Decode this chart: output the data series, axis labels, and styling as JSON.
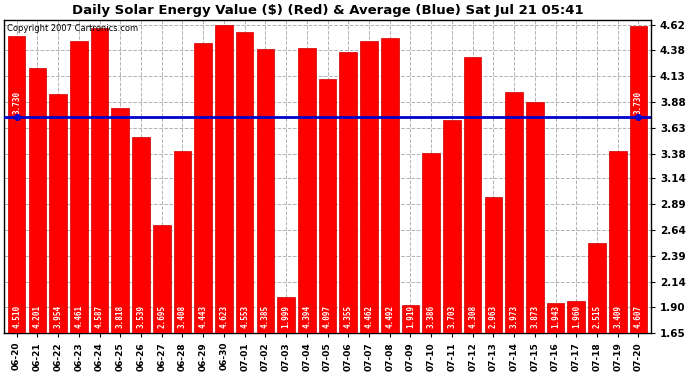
{
  "title": "Daily Solar Energy Value ($) (Red) & Average (Blue) Sat Jul 21 05:41",
  "copyright": "Copyright 2007 Cartronics.com",
  "average_value": 3.73,
  "bar_color": "#FF0000",
  "avg_line_color": "#0000CC",
  "background_color": "#FFFFFF",
  "plot_bg_color": "#FFFFFF",
  "grid_color": "#AAAAAA",
  "categories": [
    "06-20",
    "06-21",
    "06-22",
    "06-23",
    "06-24",
    "06-25",
    "06-26",
    "06-27",
    "06-28",
    "06-29",
    "06-30",
    "07-01",
    "07-02",
    "07-03",
    "07-04",
    "07-05",
    "07-06",
    "07-07",
    "07-08",
    "07-09",
    "07-10",
    "07-11",
    "07-12",
    "07-13",
    "07-14",
    "07-15",
    "07-16",
    "07-17",
    "07-18",
    "07-19",
    "07-20"
  ],
  "values": [
    4.51,
    4.201,
    3.954,
    4.461,
    4.587,
    3.818,
    3.539,
    2.695,
    3.408,
    4.443,
    4.623,
    4.553,
    4.385,
    1.999,
    4.394,
    4.097,
    4.355,
    4.462,
    4.492,
    1.919,
    3.386,
    3.703,
    4.308,
    2.963,
    3.973,
    3.873,
    1.943,
    1.96,
    2.515,
    3.409,
    4.607
  ],
  "ylim_min": 1.65,
  "ylim_max": 4.67,
  "yticks": [
    1.65,
    1.9,
    2.14,
    2.39,
    2.64,
    2.89,
    3.14,
    3.38,
    3.63,
    3.88,
    4.13,
    4.38,
    4.62
  ],
  "bar_width": 0.85,
  "avg_label": "3.730"
}
